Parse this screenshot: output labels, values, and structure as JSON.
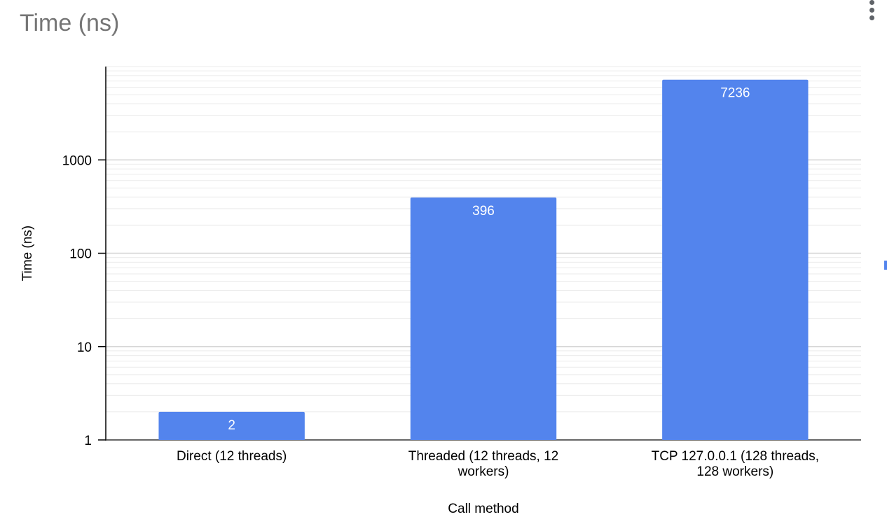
{
  "header": {
    "title": "Time (ns)"
  },
  "colors": {
    "bar": "#5384ed",
    "axis": "#000000",
    "grid_major": "#d6d6d6",
    "grid_minor": "#ebebeb",
    "title": "#757575",
    "data_label": "#ffffff"
  },
  "icons": {
    "menu": "more-vert-icon"
  },
  "chart_data": {
    "type": "bar",
    "title": "Time (ns)",
    "xlabel": "Call method",
    "ylabel": "Time (ns)",
    "yscale": "log",
    "ylim": [
      1,
      10000
    ],
    "yticks": [
      1,
      10,
      100,
      1000
    ],
    "ytick_labels": [
      "1",
      "10",
      "100",
      "1000"
    ],
    "grid": true,
    "legend": "right",
    "categories": [
      [
        "Direct (12 threads)"
      ],
      [
        "Threaded (12 threads, 12",
        "workers)"
      ],
      [
        "TCP 127.0.0.1 (128 threads,",
        "128 workers)"
      ]
    ],
    "series": [
      {
        "values": [
          2,
          396,
          7236
        ],
        "data_labels": [
          "2",
          "396",
          "7236"
        ]
      }
    ]
  }
}
